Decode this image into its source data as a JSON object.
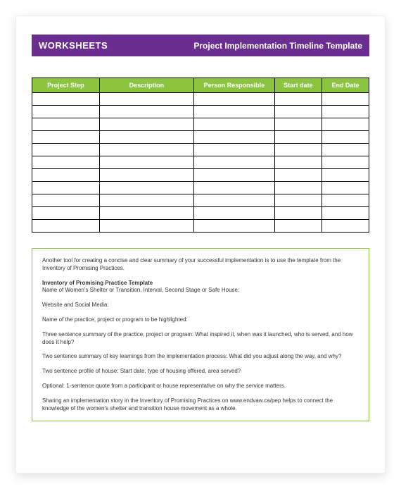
{
  "header": {
    "left": "WORKSHEETS",
    "right": "Project Implementation Timeline Template"
  },
  "table": {
    "columns": [
      "Project Step",
      "Description",
      "Person Responsible",
      "Start date",
      "End Date"
    ],
    "row_count": 11,
    "header_bg": "#8bc53f",
    "header_text_color": "#ffffff",
    "border_color": "#000000"
  },
  "info": {
    "p1": "Another tool for creating a concise and clear summary of your successful implementation is to use the template from the Inventory of Promising Practices.",
    "sub_title": "Inventory of Promising Practice Template",
    "p2": "Name of Women's Shelter or Transition, Interval, Second Stage or Safe House:",
    "p3": "Website and Social Media:",
    "p4": "Name of the practice, project or program to be highlighted:",
    "p5": "Three sentence summary of the practice, project or program: What inspired it, when was it launched, who is served, and how does it help?",
    "p6": "Two sentence summary of key learnings from the implementation process: What did you adjust along the way, and why?",
    "p7": "Two sentence profile of house: Start date, type of housing offered, area served?",
    "p8": "Optional: 1-sentence quote from a participant or house representative on why the service matters.",
    "p9": "Sharing an implementation story in the Inventory of Promising Practices on www.endvaw.ca/pep helps to connect the knowledge of the women's shelter and transition house movement as a whole."
  },
  "colors": {
    "header_bar": "#6a2e91",
    "accent": "#8bc53f",
    "page_bg": "#ffffff"
  }
}
